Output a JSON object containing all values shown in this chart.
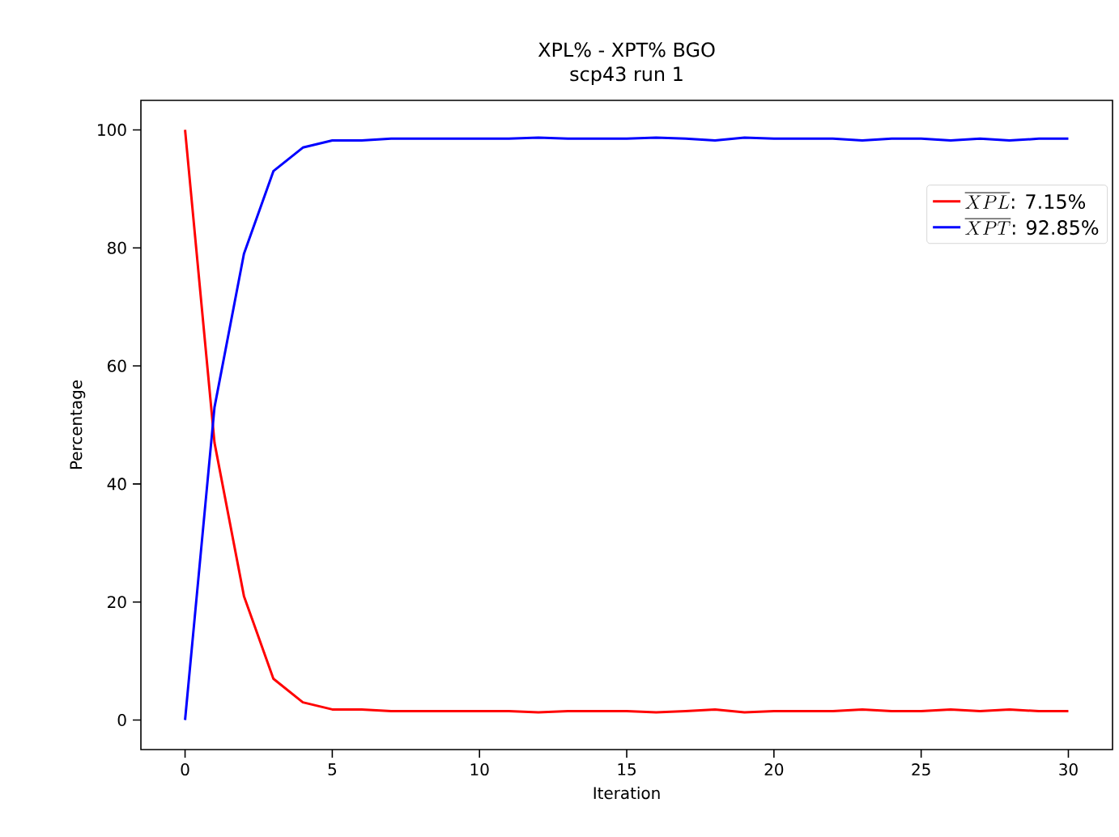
{
  "chart_data": {
    "type": "line",
    "title": "XPL% - XPT% BGO",
    "subtitle": "scp43 run 1",
    "xlabel": "Iteration",
    "ylabel": "Percentage",
    "x": [
      0,
      1,
      2,
      3,
      4,
      5,
      6,
      7,
      8,
      9,
      10,
      11,
      12,
      13,
      14,
      15,
      16,
      17,
      18,
      19,
      20,
      21,
      22,
      23,
      24,
      25,
      26,
      27,
      28,
      29,
      30
    ],
    "series": [
      {
        "name": "\\overline{XPL}\\text{: 7.15\\%}",
        "color": "#ff0000",
        "values": [
          100,
          47,
          21,
          7,
          3,
          1.8,
          1.8,
          1.5,
          1.5,
          1.5,
          1.5,
          1.5,
          1.3,
          1.5,
          1.5,
          1.5,
          1.3,
          1.5,
          1.8,
          1.3,
          1.5,
          1.5,
          1.5,
          1.8,
          1.5,
          1.5,
          1.8,
          1.5,
          1.8,
          1.5,
          1.5
        ]
      },
      {
        "name": "\\overline{XPT}\\text{: 92.85\\%}",
        "color": "#0000ff",
        "values": [
          0,
          53,
          79,
          93,
          97,
          98.2,
          98.2,
          98.5,
          98.5,
          98.5,
          98.5,
          98.5,
          98.7,
          98.5,
          98.5,
          98.5,
          98.7,
          98.5,
          98.2,
          98.7,
          98.5,
          98.5,
          98.5,
          98.2,
          98.5,
          98.5,
          98.2,
          98.5,
          98.2,
          98.5,
          98.5
        ]
      }
    ],
    "xlim": [
      -1.5,
      31.5
    ],
    "ylim": [
      -5,
      105
    ],
    "xticks": [
      0,
      5,
      10,
      15,
      20,
      25,
      30
    ],
    "yticks": [
      0,
      20,
      40,
      60,
      80,
      100
    ],
    "legend": "top right",
    "grid": false,
    "marker": "none",
    "line_style": "solid"
  }
}
